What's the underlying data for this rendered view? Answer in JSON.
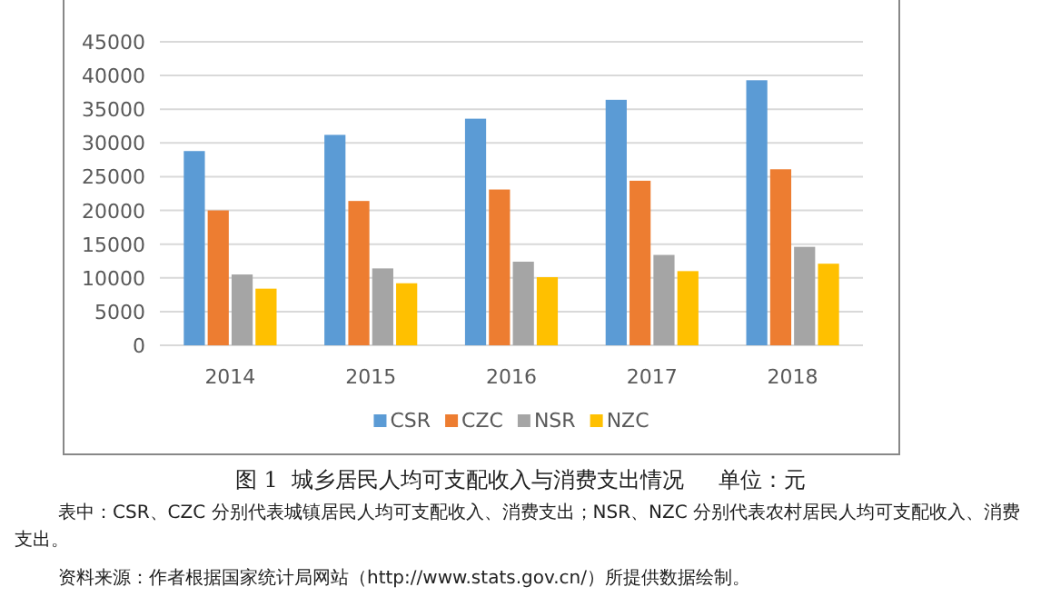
{
  "chart_data": {
    "type": "bar",
    "title": "图 1  城乡居民人均可支配收入与消费支出情况     单位：元",
    "categories": [
      "2014",
      "2015",
      "2016",
      "2017",
      "2018"
    ],
    "series": [
      {
        "name": "CSR",
        "color": "#5b9bd5",
        "values": [
          28800,
          31200,
          33600,
          36400,
          39300
        ]
      },
      {
        "name": "CZC",
        "color": "#ed7d31",
        "values": [
          20000,
          21400,
          23100,
          24400,
          26100
        ]
      },
      {
        "name": "NSR",
        "color": "#a5a5a5",
        "values": [
          10500,
          11400,
          12400,
          13400,
          14600
        ]
      },
      {
        "name": "NZC",
        "color": "#ffc000",
        "values": [
          8400,
          9200,
          10100,
          11000,
          12100
        ]
      }
    ],
    "ylim": [
      0,
      45000
    ],
    "yticks": [
      0,
      5000,
      10000,
      15000,
      20000,
      25000,
      30000,
      35000,
      40000,
      45000
    ],
    "grid": "y",
    "legend": "bottom",
    "annotations": [
      "表中：CSR、CZC 分别代表城镇居民人均可支配收入、消费支出；NSR、NZC 分别代表农村居民人均可支配收入、消费支出。",
      "资料来源：作者根据国家统计局网站（http://www.stats.gov.cn/）所提供数据绘制。"
    ]
  }
}
